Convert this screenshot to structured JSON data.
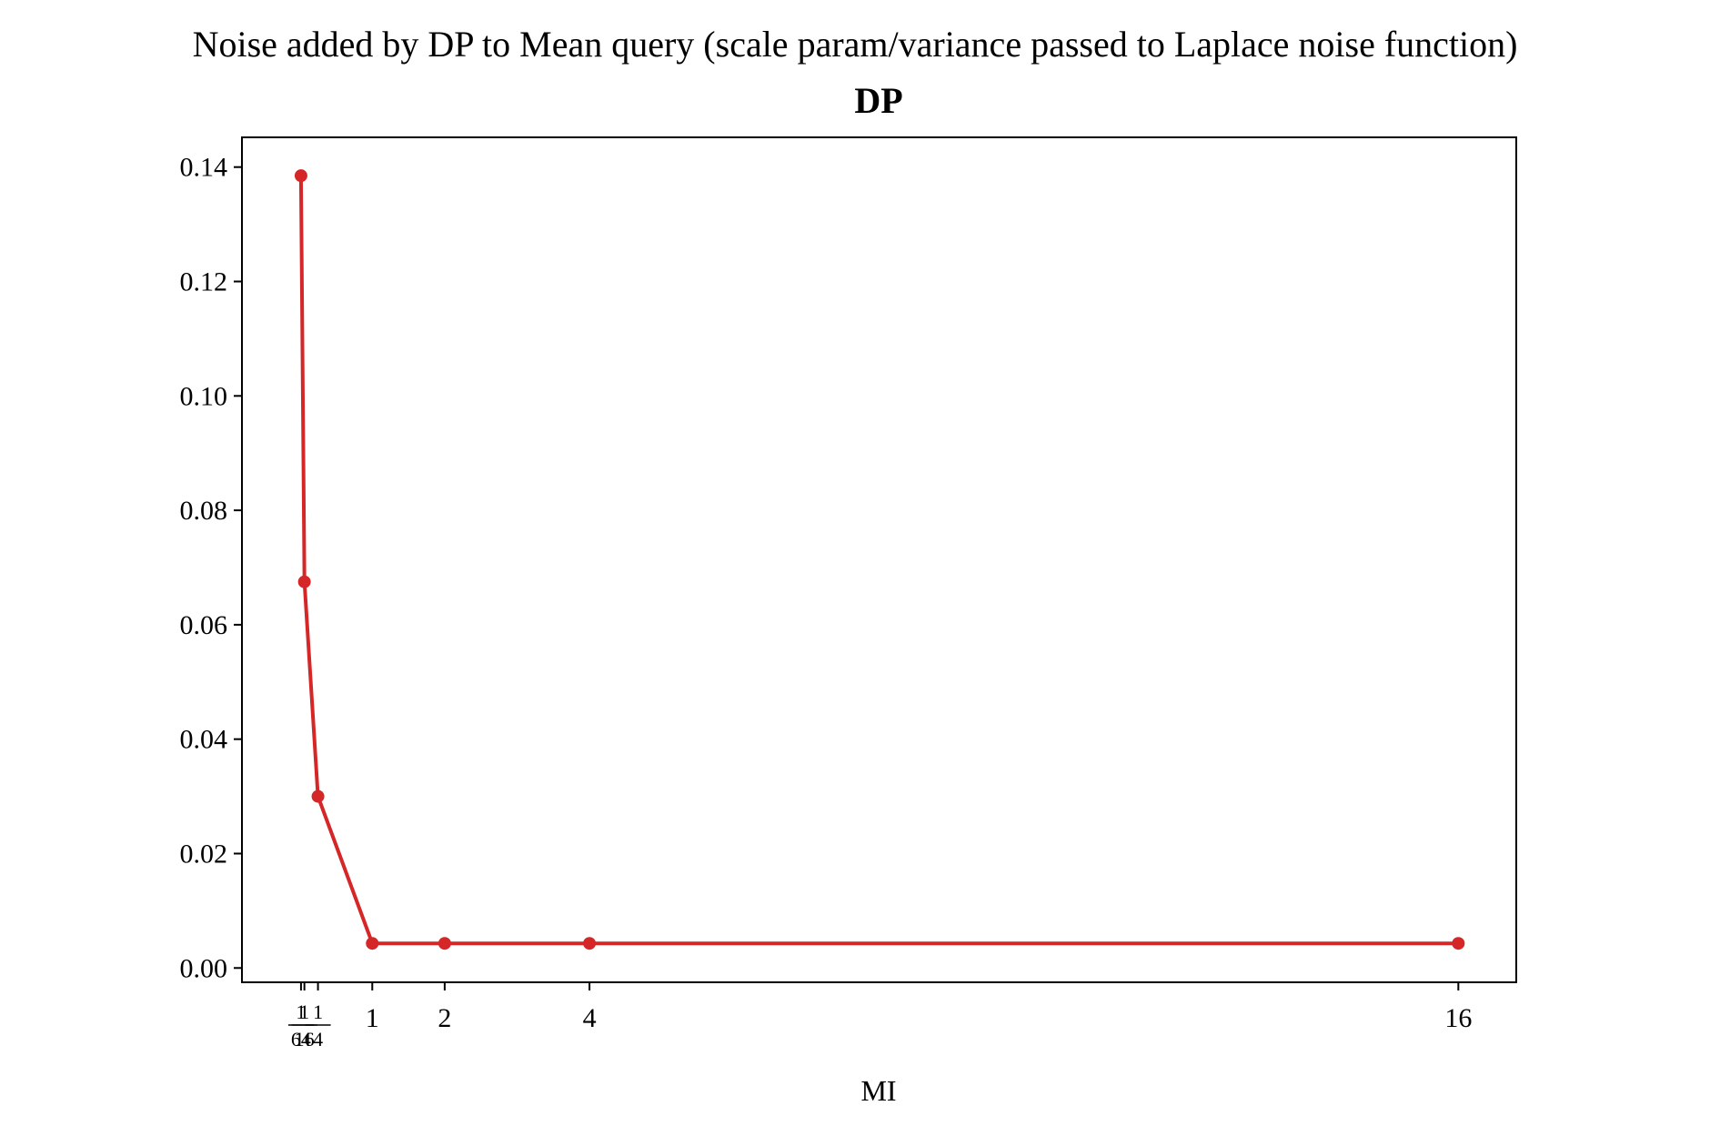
{
  "figure": {
    "suptitle": "Noise added by DP to Mean query (scale param/variance passed to Laplace noise function)"
  },
  "chart_data": {
    "type": "line",
    "title": "DP",
    "xlabel": "MI",
    "ylabel": "",
    "x": [
      0.015625,
      0.0625,
      0.25,
      1,
      2,
      4,
      16
    ],
    "series": [
      {
        "values": [
          0.1385,
          0.0675,
          0.03,
          0.0043,
          0.0043,
          0.0043,
          0.0043
        ],
        "color": "#d62728",
        "marker": "circle"
      }
    ],
    "xlim": [
      -0.8,
      16.8
    ],
    "ylim": [
      -0.0025,
      0.1452
    ],
    "x_ticks": [
      {
        "value": 0.015625,
        "label": "1/64",
        "numerator": "1",
        "denominator": "64"
      },
      {
        "value": 0.0625,
        "label": "1/16",
        "numerator": "1",
        "denominator": "16"
      },
      {
        "value": 0.25,
        "label": "1/4",
        "numerator": "1",
        "denominator": "4"
      },
      {
        "value": 1,
        "label": "1"
      },
      {
        "value": 2,
        "label": "2"
      },
      {
        "value": 4,
        "label": "4"
      },
      {
        "value": 16,
        "label": "16"
      }
    ],
    "y_ticks": [
      {
        "value": 0.0,
        "label": "0.00"
      },
      {
        "value": 0.02,
        "label": "0.02"
      },
      {
        "value": 0.04,
        "label": "0.04"
      },
      {
        "value": 0.06,
        "label": "0.06"
      },
      {
        "value": 0.08,
        "label": "0.08"
      },
      {
        "value": 0.1,
        "label": "0.10"
      },
      {
        "value": 0.12,
        "label": "0.12"
      },
      {
        "value": 0.14,
        "label": "0.14"
      }
    ],
    "grid": false,
    "legend": "none"
  }
}
